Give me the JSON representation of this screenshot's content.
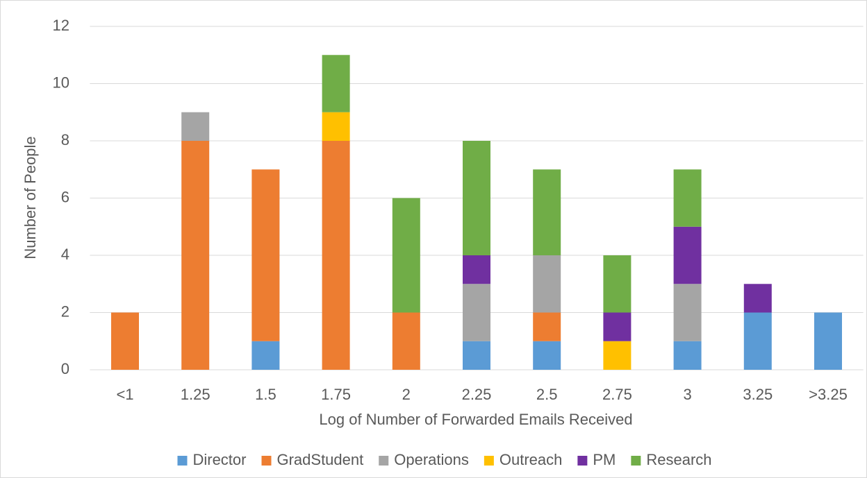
{
  "chart_data": {
    "type": "stacked_bar",
    "x_label": "Log of Number of Forwarded Emails Received",
    "y_label": "Number of People",
    "categories": [
      "<1",
      "1.25",
      "1.5",
      "1.75",
      "2",
      "2.25",
      "2.5",
      "2.75",
      "3",
      "3.25",
      ">3.25"
    ],
    "series": [
      {
        "name": "Director",
        "color": "#5b9bd5",
        "values": [
          0,
          0,
          1,
          0,
          0,
          1,
          1,
          0,
          1,
          2,
          2
        ]
      },
      {
        "name": "GradStudent",
        "color": "#ed7d31",
        "values": [
          2,
          8,
          6,
          8,
          2,
          0,
          1,
          0,
          0,
          0,
          0
        ]
      },
      {
        "name": "Operations",
        "color": "#a5a5a5",
        "values": [
          0,
          1,
          0,
          0,
          0,
          2,
          2,
          0,
          2,
          0,
          0
        ]
      },
      {
        "name": "Outreach",
        "color": "#ffc000",
        "values": [
          0,
          0,
          0,
          1,
          0,
          0,
          0,
          1,
          0,
          0,
          0
        ]
      },
      {
        "name": "PM",
        "color": "#7030a0",
        "values": [
          0,
          0,
          0,
          0,
          0,
          1,
          0,
          1,
          2,
          1,
          0
        ]
      },
      {
        "name": "Research",
        "color": "#70ad47",
        "values": [
          0,
          0,
          0,
          2,
          4,
          4,
          3,
          2,
          2,
          0,
          0
        ]
      }
    ],
    "ylim": [
      0,
      12
    ],
    "yticks": [
      0,
      2,
      4,
      6,
      8,
      10,
      12
    ],
    "grid": true,
    "legend": "bottom"
  }
}
